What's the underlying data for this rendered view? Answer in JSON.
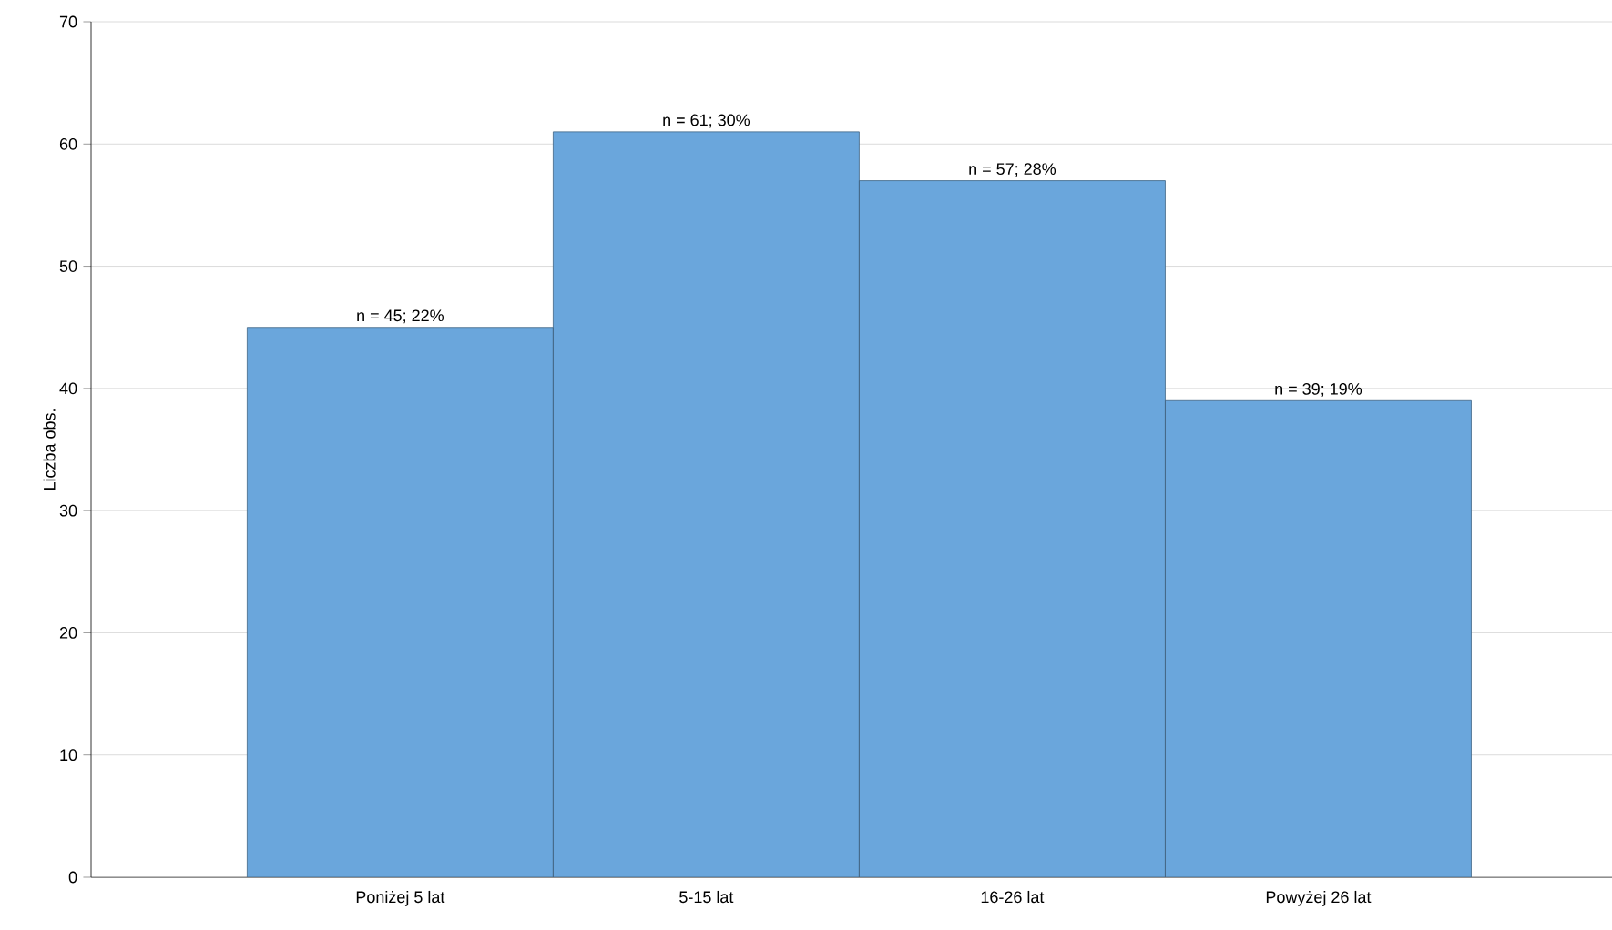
{
  "chart_data": {
    "type": "bar",
    "ylabel": "Liczba obs.",
    "categories": [
      "Poniżej 5 lat",
      "5-15 lat",
      "16-26 lat",
      "Powyżej 26 lat"
    ],
    "values": [
      45,
      61,
      57,
      39
    ],
    "value_labels": [
      "n = 45; 22%",
      "n = 61; 30%",
      "n = 57; 28%",
      "n = 39; 19%"
    ],
    "color": "#6aa6dc",
    "ylim": [
      0,
      70
    ],
    "yticks": [
      0,
      10,
      20,
      30,
      40,
      50,
      60,
      70
    ],
    "grid": "y"
  }
}
